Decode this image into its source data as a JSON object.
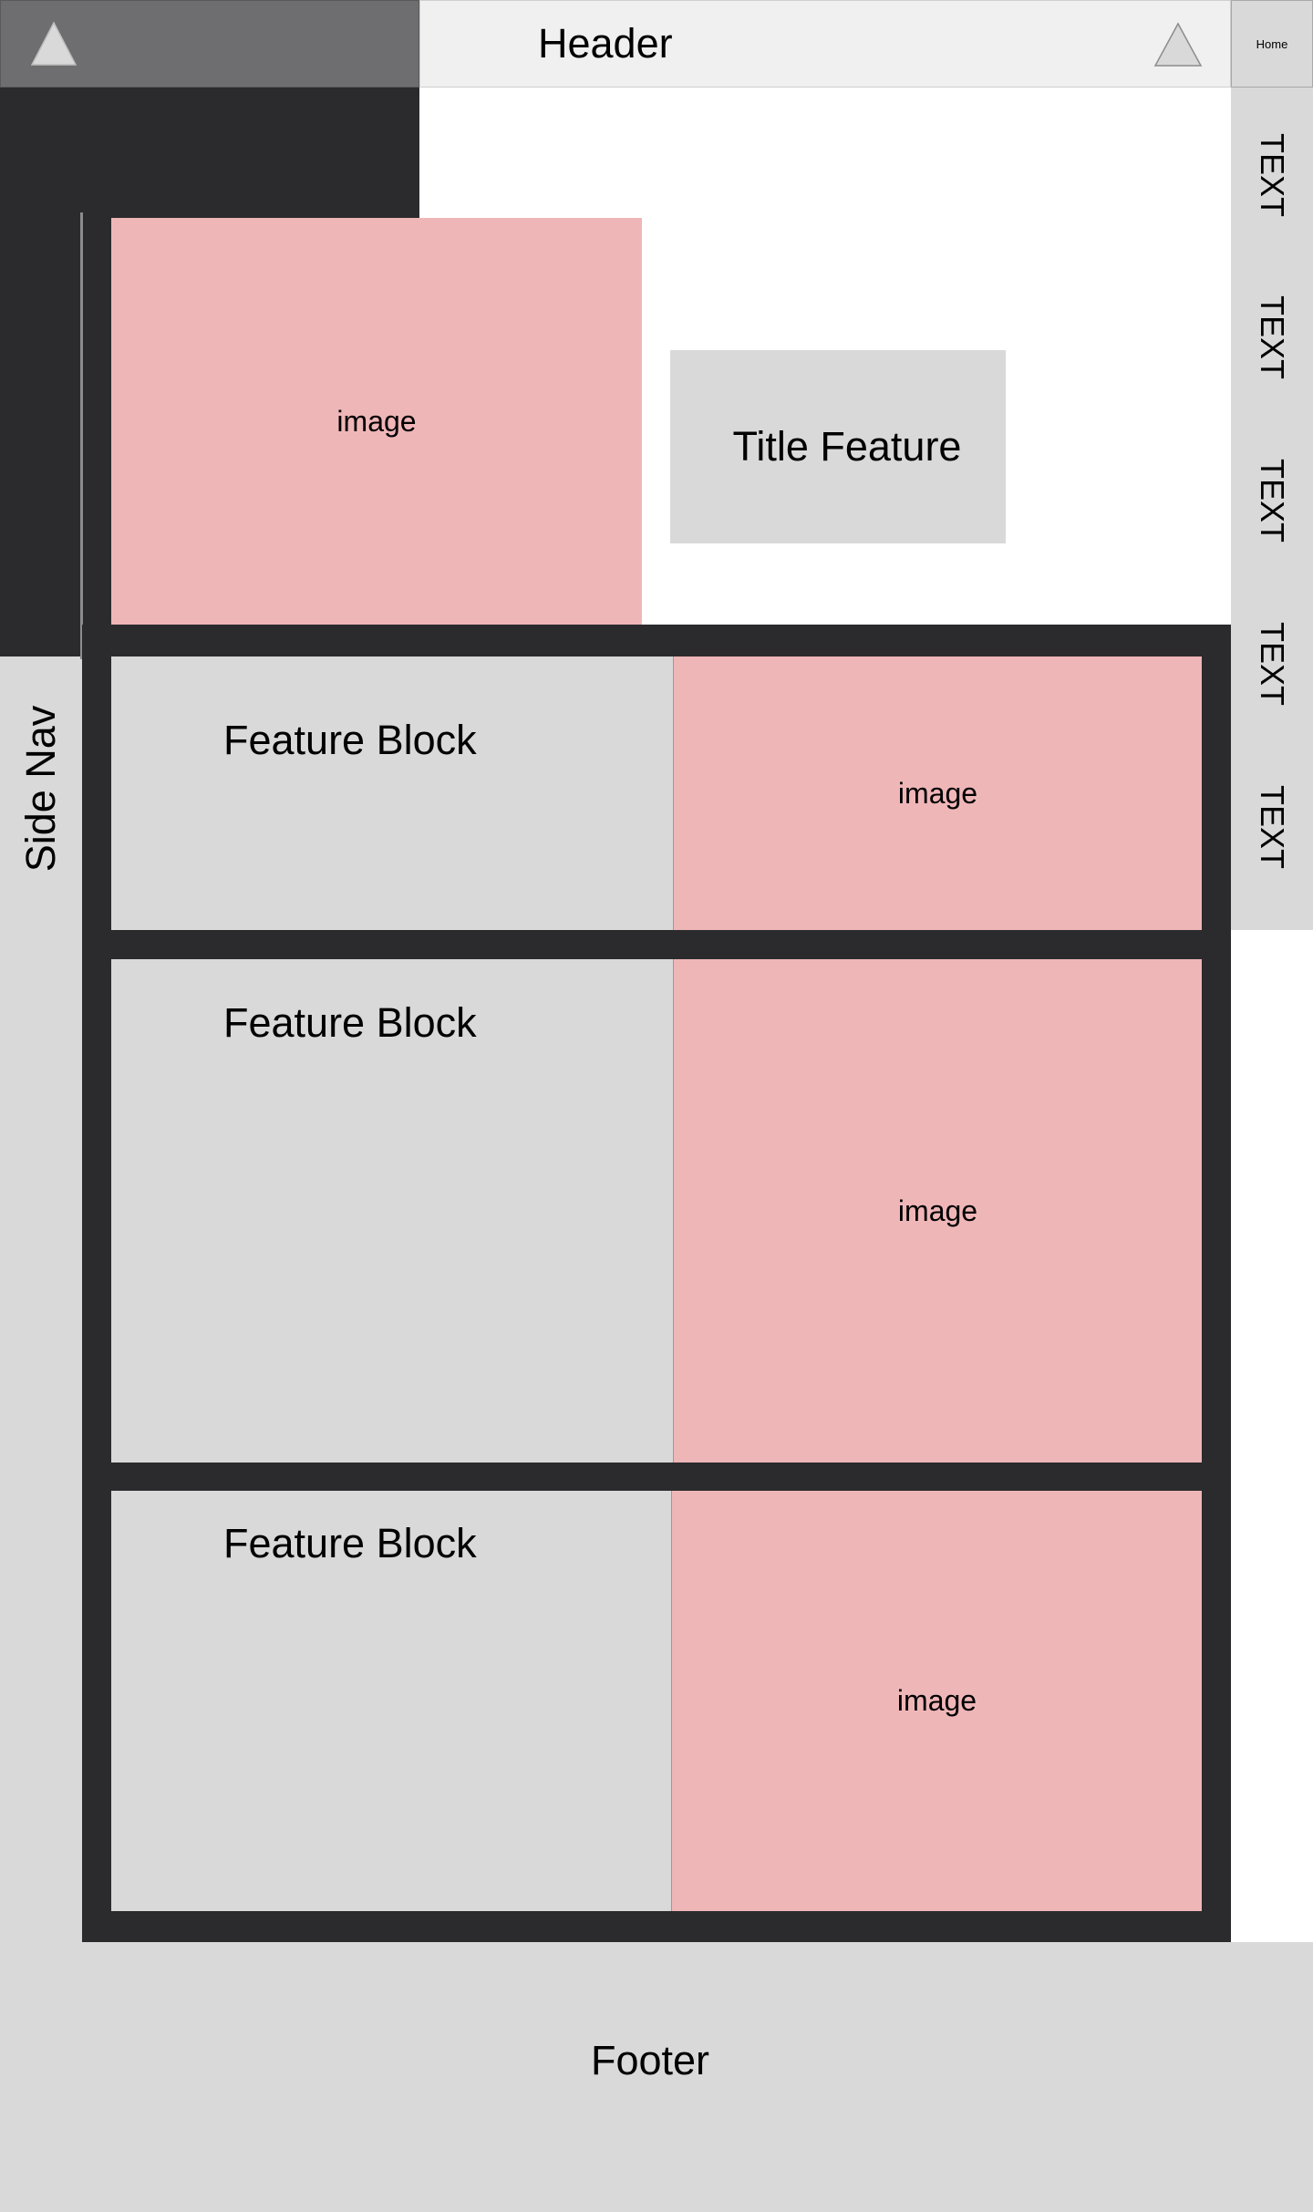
{
  "header": {
    "title": "Header",
    "home_label": "Home",
    "left_icon": "triangle-icon",
    "right_icon": "triangle-icon"
  },
  "side_nav": {
    "label": "Side Nav"
  },
  "right_nav": {
    "items": [
      "TEXT",
      "TEXT",
      "TEXT",
      "TEXT",
      "TEXT"
    ]
  },
  "hero": {
    "image_label": "image",
    "title_feature": "Title Feature"
  },
  "features": [
    {
      "title": "Feature Block",
      "image_label": "image"
    },
    {
      "title": "Feature Block",
      "image_label": "image"
    },
    {
      "title": "Feature Block",
      "image_label": "image"
    }
  ],
  "footer": {
    "label": "Footer"
  },
  "colors": {
    "dark": "#2b2b2d",
    "panel_gray": "#d9d9d9",
    "image_pink": "#efb6b8",
    "header_gray": "#f0f0f0",
    "logo_gray": "#6e6e70"
  }
}
